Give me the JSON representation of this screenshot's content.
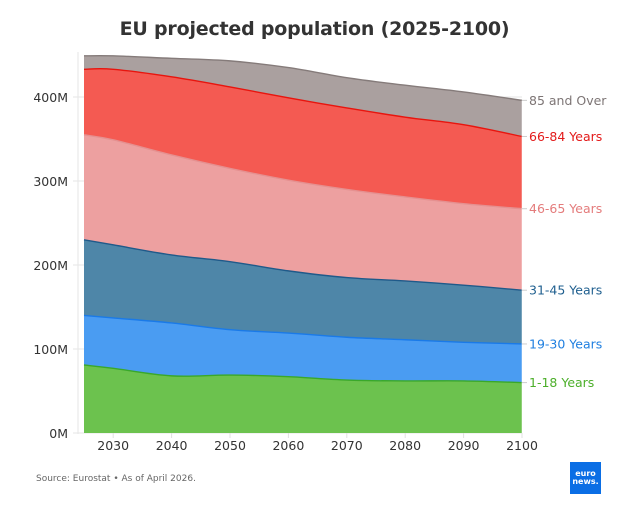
{
  "chart_data": {
    "type": "area",
    "stacked": true,
    "title": "EU projected population (2025-2100)",
    "xlabel": "",
    "ylabel": "",
    "x": [
      2025,
      2030,
      2040,
      2050,
      2060,
      2070,
      2080,
      2090,
      2100
    ],
    "xticks": [
      "2030",
      "2040",
      "2050",
      "2060",
      "2070",
      "2080",
      "2090",
      "2100"
    ],
    "xtick_values": [
      2030,
      2040,
      2050,
      2060,
      2070,
      2080,
      2090,
      2100
    ],
    "xlim": [
      2025,
      2100
    ],
    "yticks": [
      "0M",
      "100M",
      "200M",
      "300M",
      "400M"
    ],
    "ytick_values": [
      0,
      100,
      200,
      300,
      400
    ],
    "ylim": [
      0,
      460
    ],
    "y_unit": "millions",
    "grid": true,
    "legend": "right-end labels",
    "series": [
      {
        "name": "1-18 Years",
        "color": "#6cc24e",
        "line": "#3aa82a",
        "label_color": "#4caf2a",
        "values": [
          81,
          77,
          68,
          69,
          67,
          63,
          62,
          62,
          60
        ]
      },
      {
        "name": "19-30 Years",
        "color": "#4a9cf2",
        "line": "#1a7ae8",
        "label_color": "#1f7fe0",
        "values": [
          59,
          60,
          63,
          54,
          52,
          51,
          49,
          46,
          46
        ]
      },
      {
        "name": "31-45 Years",
        "color": "#4e86a8",
        "line": "#1f5a8a",
        "label_color": "#1f5f8f",
        "values": [
          90,
          87,
          81,
          81,
          74,
          71,
          70,
          68,
          64
        ]
      },
      {
        "name": "46-65 Years",
        "color": "#eda0a0",
        "line": "#e59090",
        "label_color": "#e47c7c",
        "values": [
          125,
          125,
          119,
          111,
          108,
          105,
          100,
          97,
          97
        ]
      },
      {
        "name": "66-84 Years",
        "color": "#f45a52",
        "line": "#e8150e",
        "label_color": "#e31a1a",
        "values": [
          78,
          84,
          93,
          97,
          98,
          97,
          95,
          94,
          86
        ]
      },
      {
        "name": "85 and Over",
        "color": "#aaa09f",
        "line": "#857b7a",
        "label_color": "#7d7575",
        "values": [
          16,
          16,
          22,
          31,
          36,
          36,
          38,
          39,
          43
        ]
      }
    ]
  },
  "footer": {
    "source": "Source: Eurostat • As of April 2026.",
    "logo_line1": "euro",
    "logo_line2": "news."
  }
}
